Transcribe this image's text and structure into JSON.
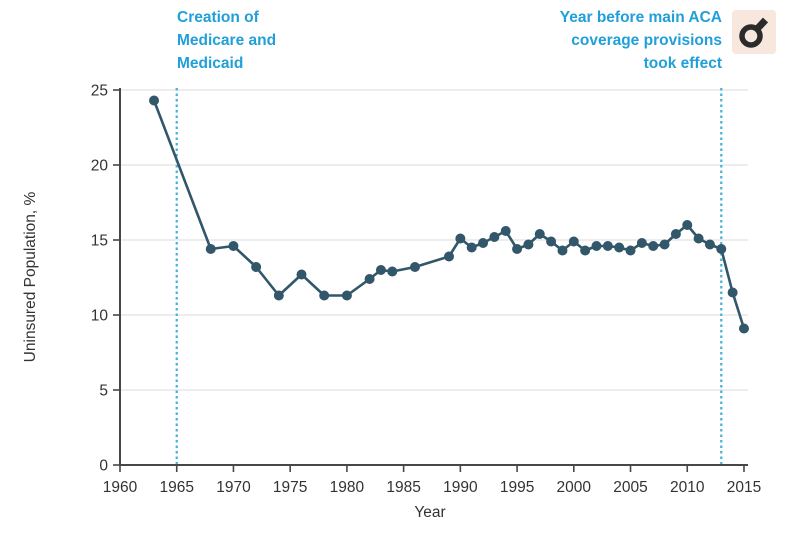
{
  "figure": {
    "xlabel": "Year",
    "ylabel": "Uninsured Population, %"
  },
  "icon": {
    "semantic": "male-symbol-icon",
    "background": "#F7E7DD",
    "glyph_color": "#2B2B2B"
  },
  "chart_data": {
    "type": "line",
    "title": "",
    "xlabel": "Year",
    "ylabel": "Uninsured Population, %",
    "xlim": [
      1960,
      2016
    ],
    "ylim": [
      0,
      25
    ],
    "x_ticks": [
      1960,
      1965,
      1970,
      1975,
      1980,
      1985,
      1990,
      1995,
      2000,
      2005,
      2010,
      2015
    ],
    "y_ticks": [
      0,
      5,
      10,
      15,
      20,
      25
    ],
    "grid": true,
    "legend": false,
    "series": [
      {
        "name": "Uninsured Population, %",
        "points": [
          [
            1963,
            24.3
          ],
          [
            1968,
            14.4
          ],
          [
            1970,
            14.6
          ],
          [
            1972,
            13.2
          ],
          [
            1974,
            11.3
          ],
          [
            1976,
            12.7
          ],
          [
            1978,
            11.3
          ],
          [
            1980,
            11.3
          ],
          [
            1982,
            12.4
          ],
          [
            1983,
            13.0
          ],
          [
            1984,
            12.9
          ],
          [
            1986,
            13.2
          ],
          [
            1989,
            13.9
          ],
          [
            1990,
            15.1
          ],
          [
            1991,
            14.5
          ],
          [
            1992,
            14.8
          ],
          [
            1993,
            15.2
          ],
          [
            1994,
            15.6
          ],
          [
            1995,
            14.4
          ],
          [
            1996,
            14.7
          ],
          [
            1997,
            15.4
          ],
          [
            1998,
            14.9
          ],
          [
            1999,
            14.3
          ],
          [
            2000,
            14.9
          ],
          [
            2001,
            14.3
          ],
          [
            2002,
            14.6
          ],
          [
            2003,
            14.6
          ],
          [
            2004,
            14.5
          ],
          [
            2005,
            14.3
          ],
          [
            2006,
            14.8
          ],
          [
            2007,
            14.6
          ],
          [
            2008,
            14.7
          ],
          [
            2009,
            15.4
          ],
          [
            2010,
            16.0
          ],
          [
            2011,
            15.1
          ],
          [
            2012,
            14.7
          ],
          [
            2013,
            14.4
          ],
          [
            2014,
            11.5
          ],
          [
            2015,
            9.1
          ]
        ]
      }
    ],
    "vlines": [
      {
        "x": 1965,
        "lines": [
          "Creation of",
          "Medicare and",
          "Medicaid"
        ]
      },
      {
        "x": 2013,
        "lines": [
          "Year before main ACA",
          "coverage provisions",
          "took effect"
        ]
      }
    ],
    "colors": {
      "line": "#32566A",
      "annotation_blue": "#219FD9",
      "dotted_line": "#45AFDF",
      "grid": "#E2E2E2",
      "axis": "#474747",
      "tick_text": "#333333"
    }
  }
}
